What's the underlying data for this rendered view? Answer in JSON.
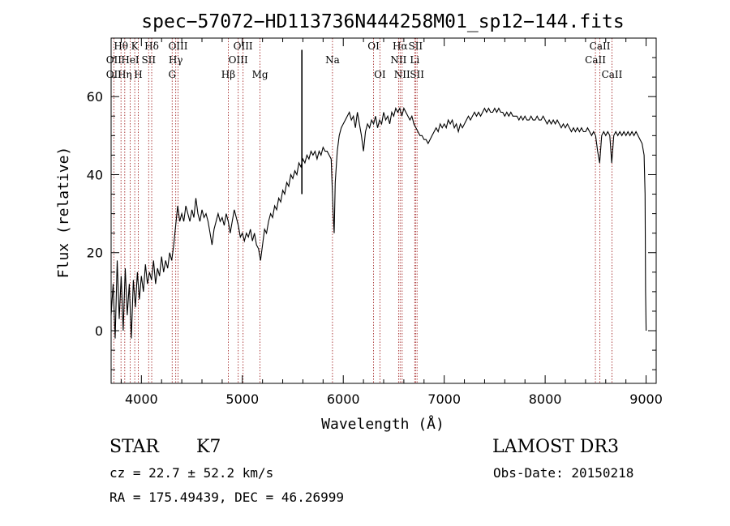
{
  "chart_data": {
    "type": "line",
    "title": "spec−57072−HD113736N444258M01_sp12−144.fits",
    "xlabel": "Wavelength (Å)",
    "ylabel": "Flux (relative)",
    "xlim": [
      3700,
      9100
    ],
    "ylim": [
      -13.5,
      75
    ],
    "xticks": [
      4000,
      5000,
      6000,
      7000,
      8000,
      9000
    ],
    "yticks": [
      0,
      20,
      40,
      60
    ],
    "series": [
      {
        "values": [
          [
            3700,
            4
          ],
          [
            3720,
            12
          ],
          [
            3740,
            -2
          ],
          [
            3760,
            18
          ],
          [
            3780,
            3
          ],
          [
            3800,
            14
          ],
          [
            3820,
            0
          ],
          [
            3840,
            16
          ],
          [
            3860,
            4
          ],
          [
            3880,
            12
          ],
          [
            3900,
            -2
          ],
          [
            3920,
            13
          ],
          [
            3940,
            6
          ],
          [
            3960,
            15
          ],
          [
            3980,
            8
          ],
          [
            4000,
            14
          ],
          [
            4020,
            10
          ],
          [
            4040,
            17
          ],
          [
            4060,
            12
          ],
          [
            4080,
            15
          ],
          [
            4100,
            13
          ],
          [
            4120,
            18
          ],
          [
            4140,
            12
          ],
          [
            4160,
            16
          ],
          [
            4180,
            14
          ],
          [
            4200,
            19
          ],
          [
            4220,
            15
          ],
          [
            4240,
            18
          ],
          [
            4260,
            16
          ],
          [
            4280,
            20
          ],
          [
            4300,
            18
          ],
          [
            4320,
            22
          ],
          [
            4340,
            27
          ],
          [
            4360,
            32
          ],
          [
            4380,
            28
          ],
          [
            4400,
            30
          ],
          [
            4420,
            28
          ],
          [
            4440,
            32
          ],
          [
            4460,
            30
          ],
          [
            4480,
            28
          ],
          [
            4500,
            31
          ],
          [
            4520,
            29
          ],
          [
            4540,
            34
          ],
          [
            4560,
            30
          ],
          [
            4580,
            28
          ],
          [
            4600,
            31
          ],
          [
            4620,
            29
          ],
          [
            4640,
            30
          ],
          [
            4660,
            28
          ],
          [
            4680,
            25
          ],
          [
            4700,
            22
          ],
          [
            4720,
            26
          ],
          [
            4740,
            28
          ],
          [
            4760,
            30
          ],
          [
            4780,
            28
          ],
          [
            4800,
            29
          ],
          [
            4820,
            27
          ],
          [
            4840,
            30
          ],
          [
            4860,
            28
          ],
          [
            4880,
            25
          ],
          [
            4900,
            28
          ],
          [
            4920,
            31
          ],
          [
            4940,
            29
          ],
          [
            4960,
            27
          ],
          [
            4980,
            24
          ],
          [
            5000,
            25
          ],
          [
            5020,
            23
          ],
          [
            5040,
            25
          ],
          [
            5060,
            24
          ],
          [
            5080,
            26
          ],
          [
            5100,
            23
          ],
          [
            5120,
            25
          ],
          [
            5140,
            22
          ],
          [
            5160,
            21
          ],
          [
            5180,
            18
          ],
          [
            5200,
            22
          ],
          [
            5220,
            26
          ],
          [
            5240,
            25
          ],
          [
            5260,
            28
          ],
          [
            5280,
            30
          ],
          [
            5300,
            29
          ],
          [
            5320,
            32
          ],
          [
            5340,
            31
          ],
          [
            5360,
            34
          ],
          [
            5380,
            33
          ],
          [
            5400,
            36
          ],
          [
            5420,
            35
          ],
          [
            5440,
            38
          ],
          [
            5460,
            37
          ],
          [
            5480,
            40
          ],
          [
            5500,
            39
          ],
          [
            5520,
            41
          ],
          [
            5540,
            40
          ],
          [
            5560,
            43
          ],
          [
            5580,
            42
          ],
          [
            5600,
            44
          ],
          [
            5620,
            43
          ],
          [
            5640,
            45
          ],
          [
            5660,
            44
          ],
          [
            5680,
            46
          ],
          [
            5700,
            45
          ],
          [
            5720,
            46
          ],
          [
            5740,
            44
          ],
          [
            5760,
            46
          ],
          [
            5780,
            45
          ],
          [
            5800,
            47
          ],
          [
            5820,
            46
          ],
          [
            5840,
            46
          ],
          [
            5860,
            45
          ],
          [
            5880,
            44
          ],
          [
            5900,
            30
          ],
          [
            5910,
            25
          ],
          [
            5920,
            38
          ],
          [
            5940,
            46
          ],
          [
            5960,
            50
          ],
          [
            5980,
            52
          ],
          [
            6000,
            53
          ],
          [
            6020,
            54
          ],
          [
            6040,
            55
          ],
          [
            6060,
            56
          ],
          [
            6080,
            54
          ],
          [
            6100,
            55
          ],
          [
            6120,
            52
          ],
          [
            6140,
            56
          ],
          [
            6160,
            53
          ],
          [
            6180,
            50
          ],
          [
            6200,
            46
          ],
          [
            6220,
            51
          ],
          [
            6240,
            53
          ],
          [
            6260,
            52
          ],
          [
            6280,
            54
          ],
          [
            6300,
            53
          ],
          [
            6320,
            55
          ],
          [
            6340,
            52
          ],
          [
            6360,
            54
          ],
          [
            6380,
            53
          ],
          [
            6400,
            56
          ],
          [
            6420,
            54
          ],
          [
            6440,
            55
          ],
          [
            6460,
            53
          ],
          [
            6480,
            56
          ],
          [
            6500,
            55
          ],
          [
            6520,
            57
          ],
          [
            6540,
            56
          ],
          [
            6560,
            57
          ],
          [
            6580,
            55
          ],
          [
            6600,
            57
          ],
          [
            6620,
            56
          ],
          [
            6640,
            55
          ],
          [
            6660,
            54
          ],
          [
            6680,
            55
          ],
          [
            6700,
            53
          ],
          [
            6720,
            52
          ],
          [
            6740,
            51
          ],
          [
            6760,
            50
          ],
          [
            6780,
            50
          ],
          [
            6800,
            49
          ],
          [
            6820,
            49
          ],
          [
            6840,
            48
          ],
          [
            6860,
            49
          ],
          [
            6880,
            50
          ],
          [
            6900,
            51
          ],
          [
            6920,
            52
          ],
          [
            6940,
            51
          ],
          [
            6960,
            53
          ],
          [
            6980,
            52
          ],
          [
            7000,
            53
          ],
          [
            7020,
            52
          ],
          [
            7040,
            54
          ],
          [
            7060,
            53
          ],
          [
            7080,
            54
          ],
          [
            7100,
            52
          ],
          [
            7120,
            53
          ],
          [
            7140,
            51
          ],
          [
            7160,
            53
          ],
          [
            7180,
            52
          ],
          [
            7200,
            53
          ],
          [
            7220,
            54
          ],
          [
            7240,
            55
          ],
          [
            7260,
            54
          ],
          [
            7280,
            55
          ],
          [
            7300,
            56
          ],
          [
            7320,
            55
          ],
          [
            7340,
            56
          ],
          [
            7360,
            55
          ],
          [
            7380,
            56
          ],
          [
            7400,
            57
          ],
          [
            7420,
            56
          ],
          [
            7440,
            57
          ],
          [
            7460,
            56
          ],
          [
            7480,
            56
          ],
          [
            7500,
            57
          ],
          [
            7520,
            56
          ],
          [
            7540,
            57
          ],
          [
            7560,
            56
          ],
          [
            7580,
            56
          ],
          [
            7600,
            55
          ],
          [
            7620,
            56
          ],
          [
            7640,
            55
          ],
          [
            7660,
            56
          ],
          [
            7680,
            55
          ],
          [
            7700,
            55
          ],
          [
            7720,
            55
          ],
          [
            7740,
            54
          ],
          [
            7760,
            55
          ],
          [
            7780,
            54
          ],
          [
            7800,
            55
          ],
          [
            7820,
            54
          ],
          [
            7840,
            54
          ],
          [
            7860,
            55
          ],
          [
            7880,
            54
          ],
          [
            7900,
            54
          ],
          [
            7920,
            55
          ],
          [
            7940,
            54
          ],
          [
            7960,
            54
          ],
          [
            7980,
            55
          ],
          [
            8000,
            54
          ],
          [
            8020,
            53
          ],
          [
            8040,
            54
          ],
          [
            8060,
            53
          ],
          [
            8080,
            54
          ],
          [
            8100,
            53
          ],
          [
            8120,
            54
          ],
          [
            8140,
            53
          ],
          [
            8160,
            52
          ],
          [
            8180,
            53
          ],
          [
            8200,
            52
          ],
          [
            8220,
            53
          ],
          [
            8240,
            52
          ],
          [
            8260,
            51
          ],
          [
            8280,
            52
          ],
          [
            8300,
            51
          ],
          [
            8320,
            52
          ],
          [
            8340,
            51
          ],
          [
            8360,
            52
          ],
          [
            8380,
            51
          ],
          [
            8400,
            51
          ],
          [
            8420,
            52
          ],
          [
            8440,
            51
          ],
          [
            8460,
            50
          ],
          [
            8480,
            51
          ],
          [
            8500,
            50
          ],
          [
            8520,
            46
          ],
          [
            8540,
            43
          ],
          [
            8560,
            50
          ],
          [
            8580,
            51
          ],
          [
            8600,
            50
          ],
          [
            8620,
            51
          ],
          [
            8640,
            50
          ],
          [
            8660,
            43
          ],
          [
            8680,
            50
          ],
          [
            8700,
            51
          ],
          [
            8720,
            50
          ],
          [
            8740,
            51
          ],
          [
            8760,
            50
          ],
          [
            8780,
            51
          ],
          [
            8800,
            50
          ],
          [
            8820,
            51
          ],
          [
            8840,
            50
          ],
          [
            8860,
            51
          ],
          [
            8880,
            50
          ],
          [
            8900,
            51
          ],
          [
            8920,
            50
          ],
          [
            8940,
            49
          ],
          [
            8960,
            48
          ],
          [
            8980,
            45
          ],
          [
            8990,
            35
          ],
          [
            8995,
            10
          ],
          [
            9000,
            0
          ]
        ]
      }
    ],
    "spike": [
      5590,
      35,
      72
    ],
    "lines_labeled": [
      {
        "label": "Hθ",
        "x": 3798,
        "row": 1
      },
      {
        "label": "OII",
        "x": 3727,
        "row": 2
      },
      {
        "label": "OII",
        "x": 3727,
        "row": 3
      },
      {
        "label": "K",
        "x": 3934,
        "row": 1
      },
      {
        "label": "HeI",
        "x": 3889,
        "row": 2
      },
      {
        "label": "Hη",
        "x": 3835,
        "row": 3
      },
      {
        "label": "Hδ",
        "x": 4102,
        "row": 1
      },
      {
        "label": "SII",
        "x": 4072,
        "row": 2
      },
      {
        "label": "H",
        "x": 3969,
        "row": 3
      },
      {
        "label": "OIII",
        "x": 4363,
        "row": 1
      },
      {
        "label": "Hγ",
        "x": 4340,
        "row": 2
      },
      {
        "label": "G",
        "x": 4305,
        "row": 3
      },
      {
        "label": "OIII",
        "x": 5007,
        "row": 1
      },
      {
        "label": "OIII",
        "x": 4959,
        "row": 2
      },
      {
        "label": "Hβ",
        "x": 4861,
        "row": 3
      },
      {
        "label": "Mg",
        "x": 5175,
        "row": 3
      },
      {
        "label": "Na",
        "x": 5893,
        "row": 2
      },
      {
        "label": "OI",
        "x": 6300,
        "row": 1
      },
      {
        "label": "OI",
        "x": 6363,
        "row": 3
      },
      {
        "label": "Hα",
        "x": 6563,
        "row": 1
      },
      {
        "label": "SII",
        "x": 6716,
        "row": 1
      },
      {
        "label": "NII",
        "x": 6548,
        "row": 2
      },
      {
        "label": "Li",
        "x": 6708,
        "row": 2
      },
      {
        "label": "NII",
        "x": 6583,
        "row": 3
      },
      {
        "label": "SII",
        "x": 6731,
        "row": 3
      },
      {
        "label": "CaII",
        "x": 8542,
        "row": 1
      },
      {
        "label": "CaII",
        "x": 8498,
        "row": 2
      },
      {
        "label": "CaII",
        "x": 8662,
        "row": 3
      }
    ]
  },
  "info": {
    "class": "STAR",
    "subclass": "K7",
    "survey": "LAMOST DR3",
    "cz": "cz = 22.7 ± 52.2 km/s",
    "obs_date": "Obs-Date: 20150218",
    "coords": "RA = 175.49439, DEC =  46.26999"
  }
}
